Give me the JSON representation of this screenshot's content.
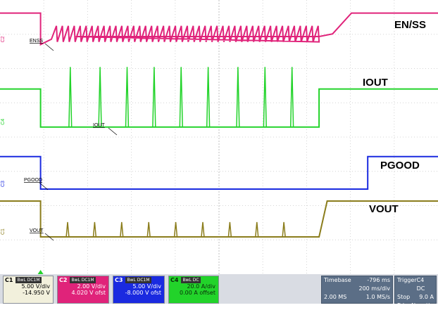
{
  "chart_data": {
    "type": "line",
    "title": "",
    "grid": true,
    "xlabel": "",
    "ylabel": "",
    "x_divisions": 10,
    "y_divisions": 8,
    "series": [
      {
        "name": "EN/SS",
        "probe_label": "ENSS",
        "channel": "C2",
        "color": "#e0237a",
        "points": [
          [
            0,
            0.94
          ],
          [
            1.5,
            0.94
          ],
          [
            1.5,
            0.35
          ],
          [
            1.9,
            0.45
          ],
          [
            2.8,
            0.5
          ],
          [
            11.8,
            0.5
          ],
          [
            12.3,
            0.55
          ],
          [
            13.0,
            0.94
          ],
          [
            16.2,
            0.94
          ]
        ],
        "ripple": {
          "x_start": 1.9,
          "x_end": 11.8,
          "period": 0.22,
          "amplitude": 0.25
        }
      },
      {
        "name": "IOUT",
        "probe_label": "IOUT",
        "channel": "C4",
        "color": "#22d32a",
        "points": [
          [
            0,
            0.72
          ],
          [
            1.5,
            0.72
          ],
          [
            1.5,
            0.15
          ],
          [
            11.8,
            0.15
          ],
          [
            11.8,
            0.72
          ],
          [
            16.2,
            0.72
          ]
        ],
        "spike_x": [
          2.6,
          3.7,
          4.7,
          5.7,
          6.7,
          7.7,
          8.8,
          9.8,
          10.8
        ],
        "spike_height": 1.05
      },
      {
        "name": "PGOOD",
        "probe_label": "PGOOD",
        "channel": "C3",
        "color": "#1a2ae0",
        "points": [
          [
            0,
            0.82
          ],
          [
            1.5,
            0.82
          ],
          [
            1.5,
            0.05
          ],
          [
            13.6,
            0.05
          ],
          [
            13.6,
            0.82
          ],
          [
            16.2,
            0.82
          ]
        ]
      },
      {
        "name": "VOUT",
        "probe_label": "VOUT",
        "channel": "C1",
        "color": "#8b7d1c",
        "points": [
          [
            0,
            0.9
          ],
          [
            1.5,
            0.9
          ],
          [
            1.5,
            0.05
          ],
          [
            11.8,
            0.05
          ],
          [
            12.1,
            0.9
          ],
          [
            16.2,
            0.9
          ]
        ],
        "spike_x": [
          2.5,
          3.5,
          4.5,
          5.5,
          6.5,
          7.5,
          8.5,
          9.5,
          10.5
        ],
        "spike_height": 0.4
      }
    ],
    "channels": [
      {
        "id": "C1",
        "tag": "BwL DC1M",
        "scale": "5.00 V/div",
        "offset": "-14.950 V",
        "color": "#8b7d1c",
        "fill": "#f2f0dc"
      },
      {
        "id": "C2",
        "tag": "BwL DC1M",
        "scale": "2.00 V/div",
        "offset": "4.020 V ofst",
        "color": "#e0237a",
        "fill": "#e0237a"
      },
      {
        "id": "C3",
        "tag": "BwL DC1M",
        "scale": "5.00 V/div",
        "offset": "-8.000 V ofst",
        "color": "#1a2ae0",
        "fill": "#1a2ae0"
      },
      {
        "id": "C4",
        "tag": "BwL DC",
        "scale": "20.0 A/div",
        "offset": "0.00 A offset",
        "color": "#22d32a",
        "fill": "#22d32a"
      }
    ],
    "timebase": {
      "label": "Timebase",
      "delay": "-796 ms",
      "per_div": "200 ms/div",
      "memory": "2.00 MS",
      "rate": "1.0 MS/s"
    },
    "trigger": {
      "label": "Trigger",
      "source": "C4 DC",
      "mode": "Stop",
      "level": "9.0 A",
      "type": "Edge",
      "slope": "Negative"
    }
  }
}
